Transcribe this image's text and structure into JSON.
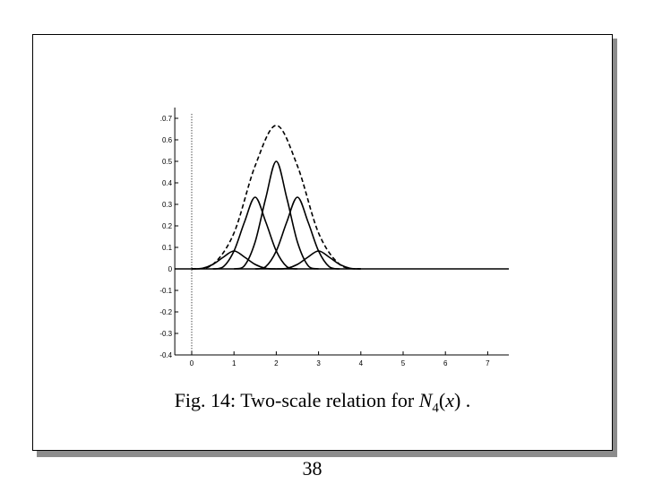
{
  "caption": {
    "prefix": "Fig. 14: Two-scale relation for ",
    "func": "N",
    "sub": "4",
    "paren_open": "(",
    "arg": "x",
    "paren_close": ")",
    "suffix": " ."
  },
  "page_number": "38",
  "chart_data": {
    "type": "line",
    "title": "",
    "xlabel": "",
    "ylabel": "",
    "xlim": [
      -0.4,
      7.5
    ],
    "ylim": [
      -0.4,
      0.75
    ],
    "x_ticks": [
      0,
      1,
      2,
      3,
      4,
      5,
      6,
      7
    ],
    "x_tick_labels": [
      "0",
      "1",
      "2",
      "3",
      "4",
      "5",
      "6",
      "7"
    ],
    "y_ticks": [
      0.7,
      0.6,
      0.5,
      0.4,
      0.3,
      0.2,
      0.1,
      0,
      -0.1,
      -0.2,
      -0.3,
      -0.4
    ],
    "y_tick_labels": [
      ".0.7",
      "0.6",
      "0.5",
      "0.4",
      "0.3",
      "0.2",
      "0.1",
      "0",
      "-0.1",
      "-0.2",
      "-0.3",
      "-0.4"
    ],
    "grid": false,
    "legend": "none",
    "vertical_reference_line": {
      "x": 0,
      "style": "dotted"
    },
    "series": [
      {
        "style": "dashed",
        "x": [
          0,
          0.5,
          1,
          1.5,
          2,
          2.5,
          3,
          3.5,
          4
        ],
        "y": [
          0,
          0.021,
          0.167,
          0.479,
          0.667,
          0.479,
          0.167,
          0.021,
          0
        ]
      },
      {
        "style": "solid",
        "x": [
          0,
          0.25,
          0.5,
          0.75,
          1,
          1.25,
          1.5,
          1.75,
          2
        ],
        "y": [
          0,
          0.0026,
          0.0208,
          0.0547,
          0.0833,
          0.0547,
          0.0208,
          0.0026,
          0
        ]
      },
      {
        "style": "solid",
        "x": [
          0.5,
          0.75,
          1,
          1.25,
          1.5,
          1.75,
          2,
          2.25,
          2.5
        ],
        "y": [
          0,
          0.0104,
          0.0833,
          0.2188,
          0.3333,
          0.2188,
          0.0833,
          0.0104,
          0
        ]
      },
      {
        "style": "solid",
        "x": [
          1,
          1.25,
          1.5,
          1.75,
          2,
          2.25,
          2.5,
          2.75,
          3
        ],
        "y": [
          0,
          0.0156,
          0.125,
          0.3281,
          0.5,
          0.3281,
          0.125,
          0.0156,
          0
        ]
      },
      {
        "style": "solid",
        "x": [
          1.5,
          1.75,
          2,
          2.25,
          2.5,
          2.75,
          3,
          3.25,
          3.5
        ],
        "y": [
          0,
          0.0104,
          0.0833,
          0.2188,
          0.3333,
          0.2188,
          0.0833,
          0.0104,
          0
        ]
      },
      {
        "style": "solid",
        "x": [
          2,
          2.25,
          2.5,
          2.75,
          3,
          3.25,
          3.5,
          3.75,
          4
        ],
        "y": [
          0,
          0.0026,
          0.0208,
          0.0547,
          0.0833,
          0.0547,
          0.0208,
          0.0026,
          0
        ]
      }
    ]
  }
}
